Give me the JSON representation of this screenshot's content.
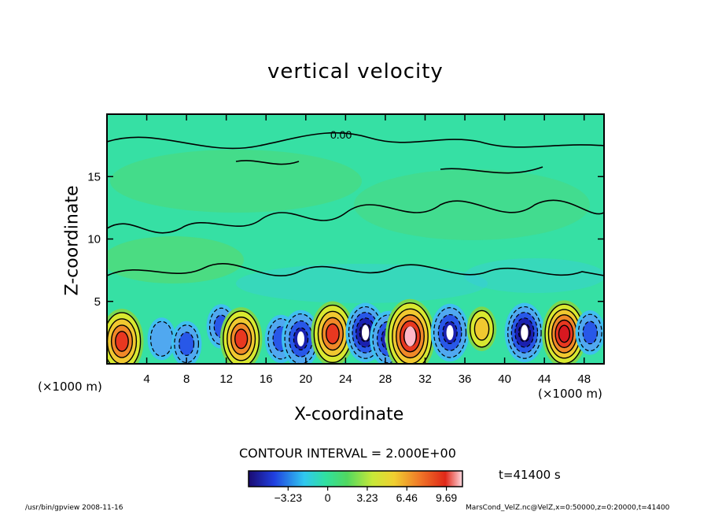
{
  "chart_data": {
    "type": "heatmap",
    "title": "vertical velocity",
    "xlabel": "X-coordinate",
    "ylabel": "Z-coordinate",
    "x_unit_left": "(×1000 m)",
    "x_unit_right": "(×1000 m)",
    "xlim": [
      0,
      50
    ],
    "ylim": [
      0,
      20
    ],
    "x_ticks": [
      4,
      8,
      12,
      16,
      20,
      24,
      28,
      32,
      36,
      40,
      44,
      48
    ],
    "y_ticks": [
      5,
      10,
      15
    ],
    "contour_interval": "CONTOUR INTERVAL = 2.000E+00",
    "contour_label": "0.00",
    "time_label": "t=41400 s",
    "colorbar": {
      "min": -6.46,
      "max": 11.0,
      "tick_values": [
        -3.23,
        0,
        3.23,
        6.46,
        9.69
      ],
      "tick_labels": [
        "−3.23",
        "0",
        "3.23",
        "6.46",
        "9.69"
      ]
    },
    "cells": [
      {
        "x": 1.5,
        "z": 1.8,
        "w": 8.5
      },
      {
        "x": 5.5,
        "z": 2.0,
        "w": -2.5
      },
      {
        "x": 8.0,
        "z": 1.6,
        "w": -3.3
      },
      {
        "x": 11.5,
        "z": 3.0,
        "w": -3.0
      },
      {
        "x": 13.5,
        "z": 2.0,
        "w": 8.0
      },
      {
        "x": 17.5,
        "z": 2.0,
        "w": -4.0
      },
      {
        "x": 19.5,
        "z": 2.0,
        "w": -6.5
      },
      {
        "x": 22.7,
        "z": 2.4,
        "w": 8.5
      },
      {
        "x": 26.0,
        "z": 2.5,
        "w": -7.0
      },
      {
        "x": 28.3,
        "z": 2.0,
        "w": -6.0
      },
      {
        "x": 30.5,
        "z": 2.2,
        "w": 11.0
      },
      {
        "x": 34.5,
        "z": 2.5,
        "w": -6.5
      },
      {
        "x": 37.7,
        "z": 2.8,
        "w": 3.0
      },
      {
        "x": 42.0,
        "z": 2.5,
        "w": -7.0
      },
      {
        "x": 46.0,
        "z": 2.4,
        "w": 9.0
      },
      {
        "x": 48.6,
        "z": 2.5,
        "w": -3.0
      }
    ]
  },
  "footer": {
    "left": "/usr/bin/gpview  2008-11-16",
    "right": "MarsCond_VelZ.nc@VelZ,x=0:50000,z=0:20000,t=41400"
  }
}
